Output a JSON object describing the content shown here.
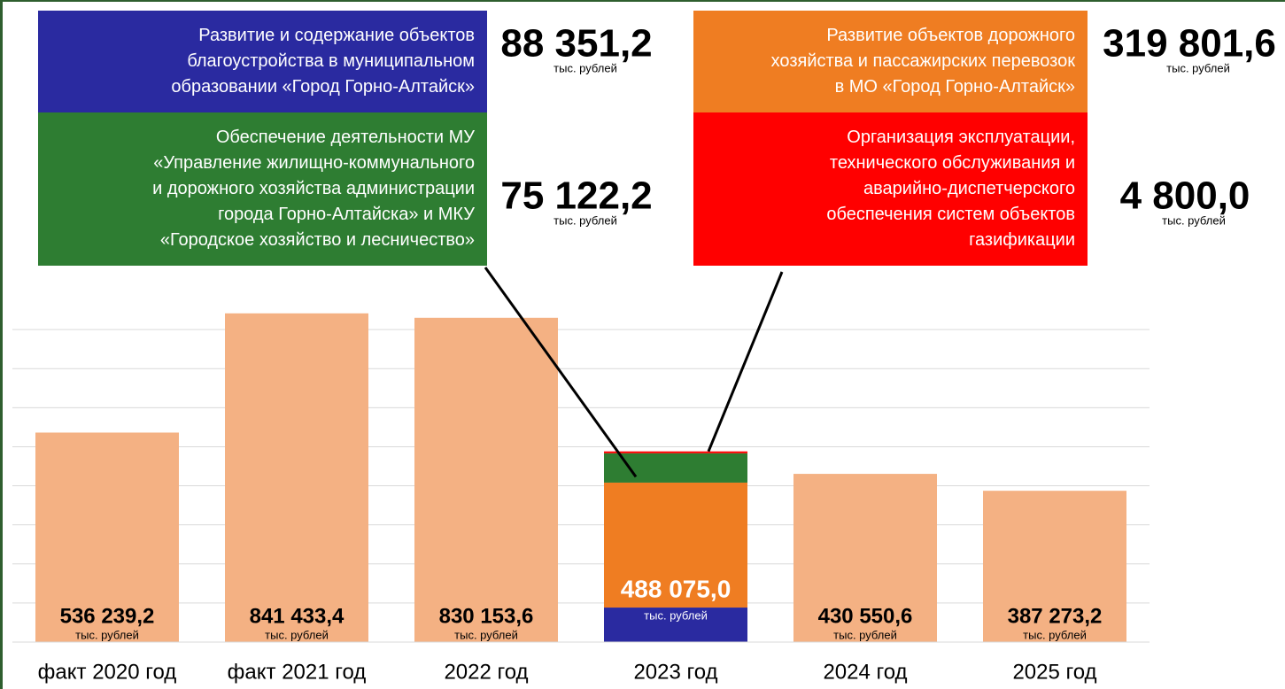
{
  "chart_data": {
    "type": "bar",
    "categories": [
      "факт 2020 год",
      "факт 2021 год",
      "2022 год",
      "2023 год",
      "2024 год",
      "2025 год"
    ],
    "values": [
      536239.2,
      841433.4,
      830153.6,
      488075.0,
      430550.6,
      387273.2
    ],
    "value_labels": [
      "536 239,2",
      "841 433,4",
      "830 153,6",
      "488 075,0",
      "430 550,6",
      "387 273,2"
    ],
    "unit": "тыс. рублей",
    "color": "#f4b183",
    "ylim": [
      0,
      900000
    ],
    "yticks": [
      0,
      100000,
      200000,
      300000,
      400000,
      500000,
      600000,
      700000,
      800000
    ],
    "grid": true,
    "stack": [
      {
        "name": "Развитие и содержание объектов\nблагоустройства в муниципальном\nобразовании «Город Горно-Алтайск»",
        "color": "#2a2aa0",
        "value": 88351.2,
        "value_label": "88 351,2"
      },
      {
        "name": "Развитие объектов дорожного\nхозяйства и пассажирских перевозок\nв МО «Город Горно-Алтайск»",
        "color": "#ef7d22",
        "value": 319801.6,
        "value_label": "319 801,6"
      },
      {
        "name": "Обеспечение деятельности МУ\n«Управление жилищно-коммунального\nи дорожного хозяйства администрации\nгорода Горно-Алтайска» и МКУ\n«Городское хозяйство и лесничество»",
        "color": "#2e7d32",
        "value": 75122.2,
        "value_label": "75 122,2"
      },
      {
        "name": "Организация эксплуатации,\nтехнического обслуживания  и\nаварийно-диспетчерского\nобеспечения систем объектов\nгазификации",
        "color": "#ff0000",
        "value": 4800.0,
        "value_label": "4 800,0"
      }
    ]
  }
}
